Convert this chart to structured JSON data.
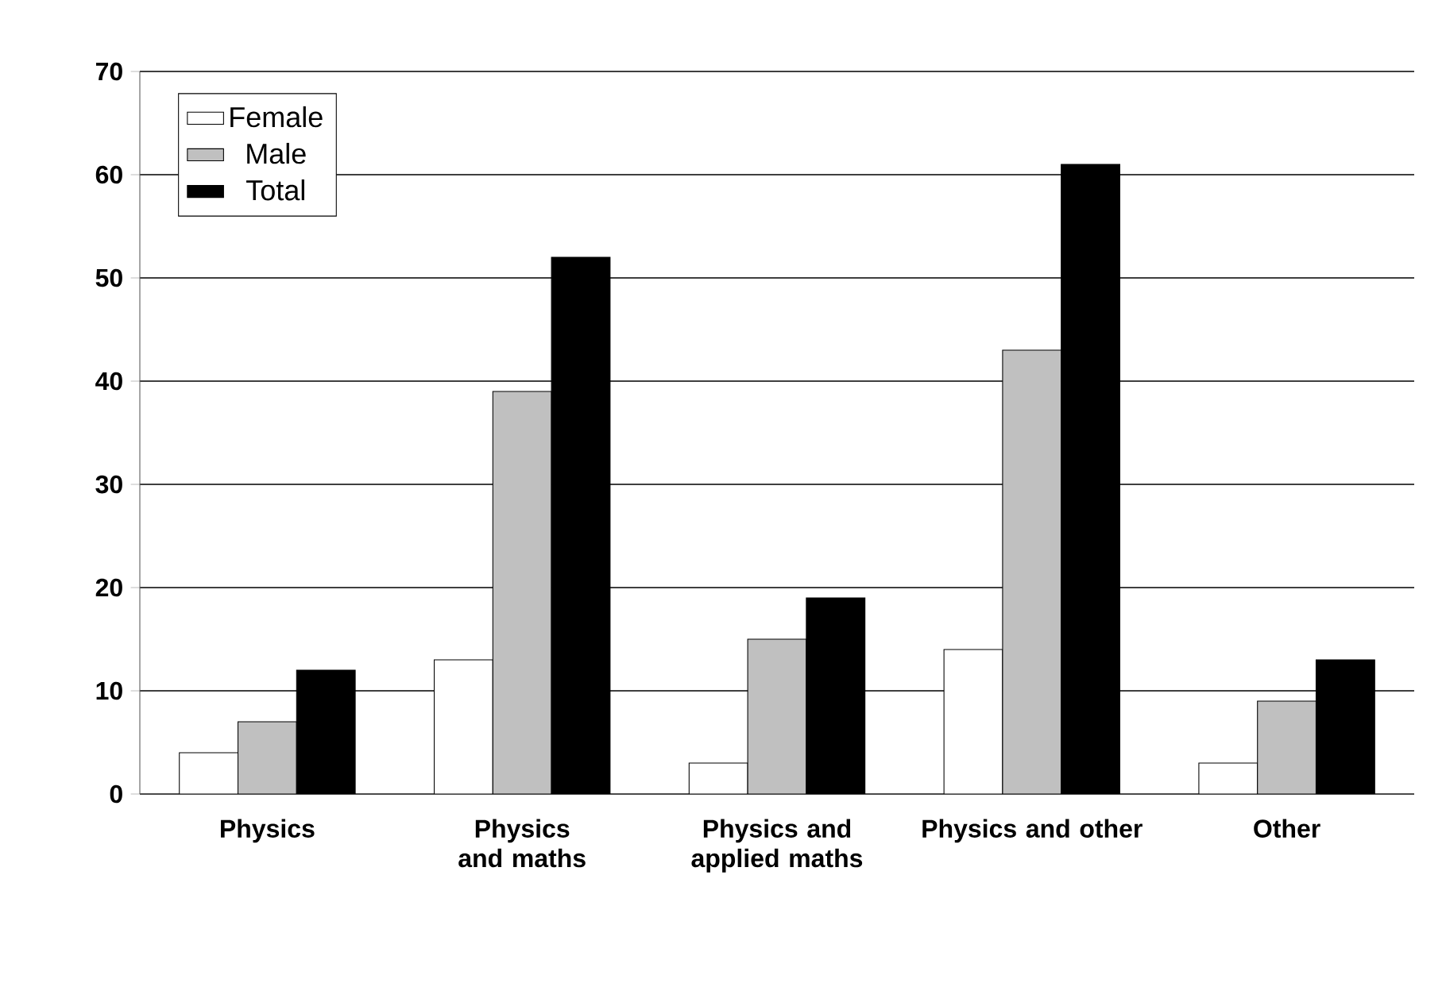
{
  "chart_data": {
    "type": "bar",
    "categories": [
      "Physics",
      "Physics and maths",
      "Physics and applied maths",
      "Physics and other",
      "Other"
    ],
    "series": [
      {
        "name": "Female",
        "color": "#ffffff",
        "values": [
          4,
          13,
          3,
          14,
          3
        ]
      },
      {
        "name": "Male",
        "color": "#c0c0c0",
        "values": [
          7,
          39,
          15,
          43,
          9
        ]
      },
      {
        "name": "Total",
        "color": "#000000",
        "values": [
          12,
          52,
          19,
          61,
          13
        ]
      }
    ],
    "ylim": [
      0,
      70
    ],
    "yticks": [
      0,
      10,
      20,
      30,
      40,
      50,
      60,
      70
    ],
    "grid": "y",
    "legend": "top left"
  }
}
